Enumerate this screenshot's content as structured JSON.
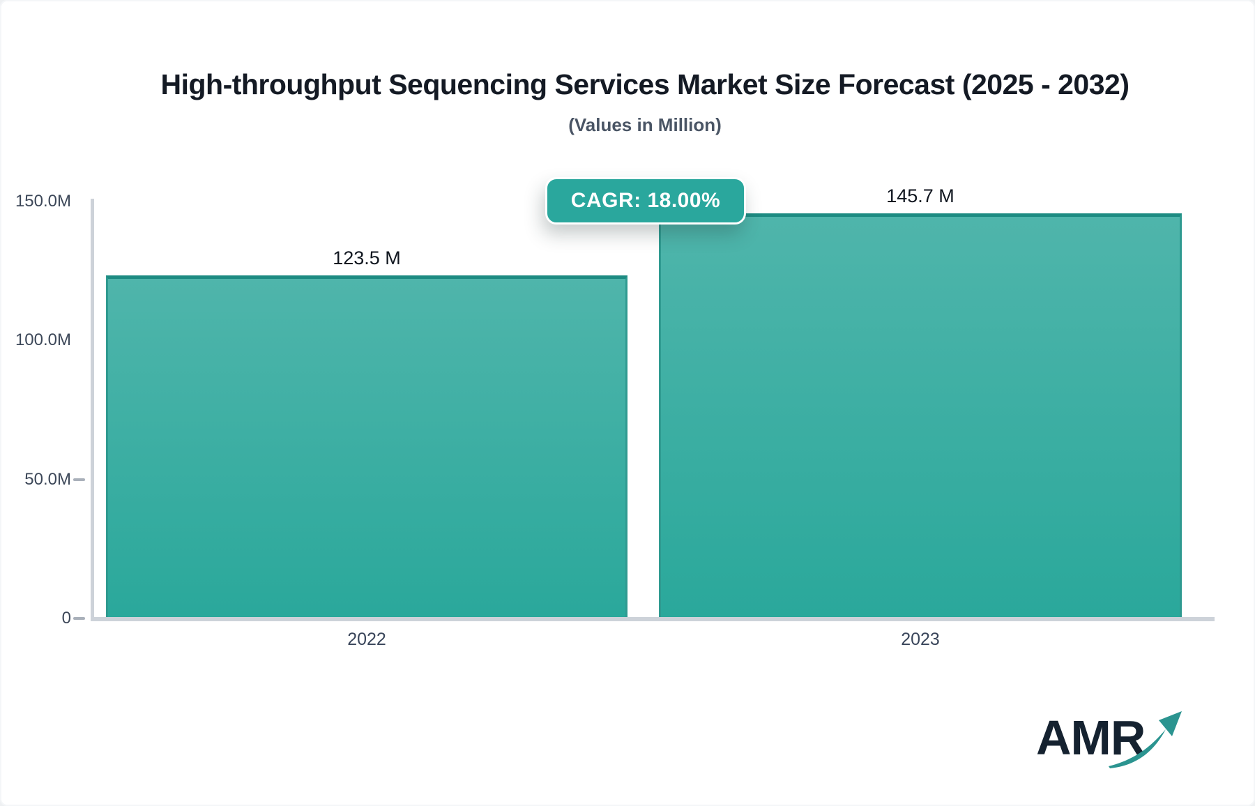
{
  "chart_data": {
    "type": "bar",
    "title": "High-throughput Sequencing Services Market Size Forecast (2025 - 2032)",
    "subtitle": "(Values in Million)",
    "categories": [
      "2022",
      "2023"
    ],
    "values": [
      123.5,
      145.7
    ],
    "value_labels": [
      "123.5 M",
      "145.7 M"
    ],
    "xlabel": "",
    "ylabel": "",
    "ylim": [
      0,
      150
    ],
    "grid": "off",
    "legend": "none",
    "yticks": [
      {
        "label": "150.0M",
        "value": 150,
        "tick": false
      },
      {
        "label": "100.0M",
        "value": 100,
        "tick": false
      },
      {
        "label": "50.0M",
        "value": 50,
        "tick": true
      },
      {
        "label": "0",
        "value": 0,
        "tick": true
      }
    ],
    "cagr_label": "CAGR: 18.00%",
    "colors": {
      "bar_gradient_top": "#4fb5ab",
      "bar_gradient_bottom": "#2aa89b",
      "bar_border": "#1d8b82",
      "badge_background": "#2aa79d",
      "badge_text": "#ffffff",
      "axis": "#cdd2d9",
      "tick": "#a9b0ba",
      "axis_label": "#3d4859",
      "title": "#141a24",
      "subtitle": "#4a5565"
    }
  },
  "branding": {
    "logo_text": "AMR",
    "logo_color": "#152230",
    "arrow_color": "#2b9490"
  }
}
